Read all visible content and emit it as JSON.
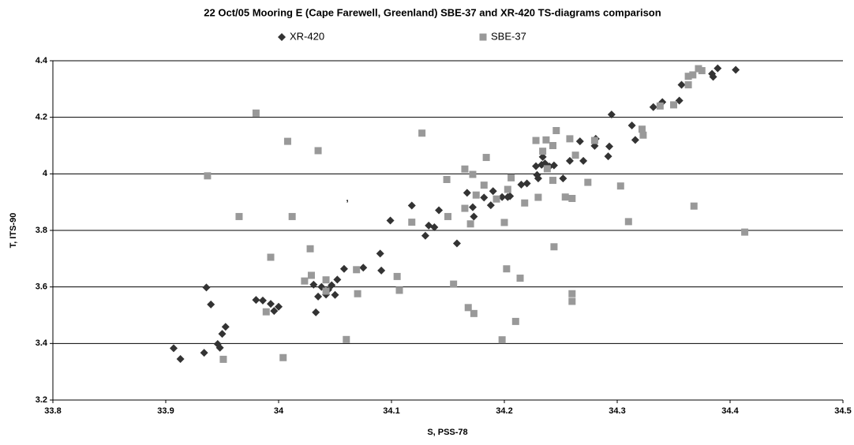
{
  "chart_data": {
    "type": "scatter",
    "title": "22 Oct/05 Mooring E (Cape Farewell, Greenland) SBE-37 and XR-420 TS-diagrams comparison",
    "xlabel": "S, PSS-78",
    "ylabel": "T, ITS-90",
    "annotation": ",",
    "xlim": [
      33.8,
      34.5
    ],
    "xticks": [
      33.8,
      33.9,
      34,
      34.1,
      34.2,
      34.3,
      34.4,
      34.5
    ],
    "ylim": [
      3.2,
      4.4
    ],
    "yticks": [
      3.2,
      3.4,
      3.6,
      3.8,
      4,
      4.2,
      4.4
    ],
    "grid": true,
    "legend": "top",
    "series": [
      {
        "name": "XR-420",
        "color": "#333333",
        "marker": "diamond",
        "x": [
          33.907,
          33.913,
          33.934,
          33.936,
          33.94,
          33.946,
          33.948,
          33.95,
          33.953,
          33.98,
          33.986,
          33.993,
          33.996,
          34.0,
          34.033,
          34.031,
          34.035,
          34.038,
          34.042,
          34.044,
          34.047,
          34.05,
          34.052,
          34.058,
          34.075,
          34.09,
          34.091,
          34.099,
          34.118,
          34.13,
          34.133,
          34.138,
          34.142,
          34.158,
          34.167,
          34.172,
          34.173,
          34.182,
          34.188,
          34.19,
          34.198,
          34.203,
          34.205,
          34.215,
          34.22,
          34.228,
          34.229,
          34.23,
          34.233,
          34.234,
          34.236,
          34.24,
          34.244,
          34.252,
          34.258,
          34.267,
          34.27,
          34.28,
          34.281,
          34.292,
          34.293,
          34.295,
          34.313,
          34.316,
          34.332,
          34.34,
          34.355,
          34.357,
          34.384,
          34.385,
          34.389,
          34.405
        ],
        "values": [
          3.383,
          3.345,
          3.367,
          3.598,
          3.538,
          3.398,
          3.385,
          3.434,
          3.459,
          3.554,
          3.552,
          3.54,
          3.515,
          3.53,
          3.51,
          3.608,
          3.566,
          3.6,
          3.573,
          3.59,
          3.606,
          3.572,
          3.626,
          3.664,
          3.668,
          3.718,
          3.658,
          3.835,
          3.888,
          3.781,
          3.817,
          3.811,
          3.871,
          3.754,
          3.933,
          3.882,
          3.849,
          3.916,
          3.889,
          3.939,
          3.918,
          3.918,
          3.921,
          3.962,
          3.966,
          4.027,
          3.996,
          3.984,
          4.032,
          4.06,
          4.037,
          4.026,
          4.03,
          3.984,
          4.046,
          4.115,
          4.046,
          4.099,
          4.124,
          4.062,
          4.097,
          4.21,
          4.171,
          4.12,
          4.236,
          4.254,
          4.259,
          4.315,
          4.354,
          4.343,
          4.373,
          4.368
        ]
      },
      {
        "name": "SBE-37",
        "color": "#999999",
        "marker": "square",
        "x": [
          33.937,
          33.951,
          33.965,
          33.98,
          33.989,
          33.993,
          34.004,
          34.008,
          34.012,
          34.023,
          34.028,
          34.029,
          34.035,
          34.042,
          34.042,
          34.06,
          34.069,
          34.07,
          34.105,
          34.107,
          34.118,
          34.127,
          34.149,
          34.15,
          34.155,
          34.165,
          34.165,
          34.168,
          34.17,
          34.172,
          34.173,
          34.175,
          34.182,
          34.184,
          34.193,
          34.198,
          34.2,
          34.202,
          34.203,
          34.206,
          34.21,
          34.214,
          34.218,
          34.228,
          34.23,
          34.234,
          34.237,
          34.238,
          34.243,
          34.243,
          34.244,
          34.246,
          34.254,
          34.258,
          34.26,
          34.26,
          34.26,
          34.263,
          34.274,
          34.28,
          34.303,
          34.31,
          34.322,
          34.323,
          34.338,
          34.35,
          34.363,
          34.363,
          34.367,
          34.368,
          34.372,
          34.375,
          34.413
        ],
        "values": [
          3.993,
          3.344,
          3.849,
          4.215,
          3.512,
          3.705,
          3.35,
          4.115,
          3.849,
          3.621,
          3.735,
          3.641,
          4.082,
          3.625,
          3.585,
          3.414,
          3.661,
          3.576,
          3.637,
          3.588,
          3.829,
          4.144,
          3.98,
          3.849,
          3.61,
          4.017,
          3.878,
          3.527,
          3.823,
          3.998,
          3.506,
          3.925,
          3.96,
          4.058,
          3.911,
          3.413,
          3.828,
          3.664,
          3.945,
          3.986,
          3.478,
          3.631,
          3.897,
          4.118,
          3.917,
          4.08,
          4.12,
          4.018,
          4.1,
          3.977,
          3.742,
          4.153,
          3.918,
          4.124,
          3.576,
          3.549,
          3.913,
          4.066,
          3.97,
          4.118,
          3.957,
          3.831,
          4.158,
          4.137,
          4.24,
          4.244,
          4.315,
          4.345,
          4.35,
          3.886,
          4.372,
          4.365,
          3.794
        ]
      }
    ]
  }
}
